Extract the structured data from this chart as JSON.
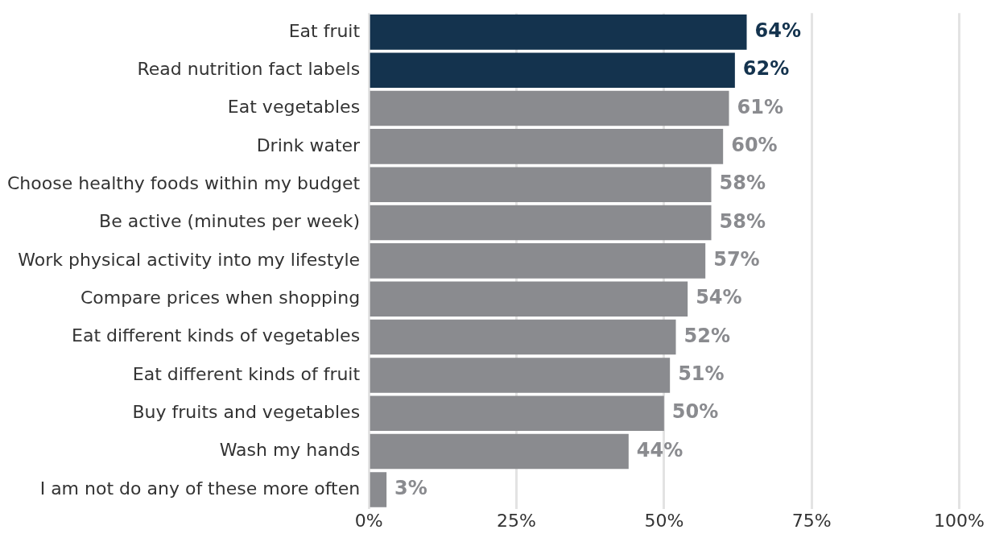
{
  "chart_data": {
    "type": "bar",
    "orientation": "horizontal",
    "categories": [
      "Eat fruit",
      "Read nutrition fact labels",
      "Eat vegetables",
      "Drink water",
      "Choose healthy foods within my budget",
      "Be active (minutes per week)",
      "Work physical activity into my lifestyle",
      "Compare prices when shopping",
      "Eat different kinds of vegetables",
      "Eat different kinds of fruit",
      "Buy fruits and vegetables",
      "Wash my hands",
      "I am not do any of these more often"
    ],
    "values": [
      64,
      62,
      61,
      60,
      58,
      58,
      57,
      54,
      52,
      51,
      50,
      44,
      3
    ],
    "value_labels": [
      "64%",
      "62%",
      "61%",
      "60%",
      "58%",
      "58%",
      "57%",
      "54%",
      "52%",
      "51%",
      "50%",
      "44%",
      "3%"
    ],
    "colors": [
      "#14334e",
      "#14334e",
      "#8a8b8f",
      "#8a8b8f",
      "#8a8b8f",
      "#8a8b8f",
      "#8a8b8f",
      "#8a8b8f",
      "#8a8b8f",
      "#8a8b8f",
      "#8a8b8f",
      "#8a8b8f",
      "#8a8b8f"
    ],
    "xlim": [
      0,
      100
    ],
    "xticks": [
      {
        "value": 0,
        "label": "0%"
      },
      {
        "value": 25,
        "label": "25%"
      },
      {
        "value": 50,
        "label": "50%"
      },
      {
        "value": 75,
        "label": "75%"
      },
      {
        "value": 100,
        "label": "100%"
      }
    ],
    "grid": "x"
  }
}
